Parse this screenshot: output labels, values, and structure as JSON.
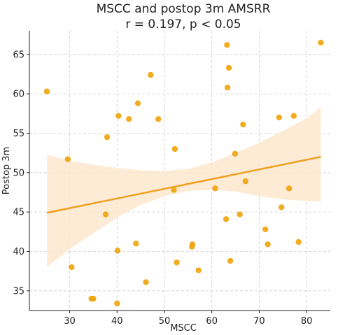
{
  "chart_data": {
    "type": "scatter",
    "title": "MSCC and postop 3m AMSRR",
    "subtitle": "r = 0.197, p < 0.05",
    "xlabel": "MSCC",
    "ylabel": "Postop 3m",
    "xlim": [
      21.5,
      85
    ],
    "ylim": [
      32.5,
      68
    ],
    "xticks": [
      30,
      40,
      50,
      60,
      70,
      80
    ],
    "yticks": [
      35,
      40,
      45,
      50,
      55,
      60,
      65
    ],
    "grid": true,
    "colors": {
      "points": "#f0a30a",
      "line": "#f0a020",
      "band": "#fde8cf",
      "grid": "#cccccc",
      "axis": "#222222"
    },
    "points": [
      {
        "x": 25.2,
        "y": 60.3
      },
      {
        "x": 29.6,
        "y": 51.7
      },
      {
        "x": 30.4,
        "y": 38.0
      },
      {
        "x": 34.6,
        "y": 34.0
      },
      {
        "x": 35.0,
        "y": 34.0
      },
      {
        "x": 37.6,
        "y": 44.7
      },
      {
        "x": 37.9,
        "y": 54.5
      },
      {
        "x": 40.0,
        "y": 33.4
      },
      {
        "x": 40.1,
        "y": 40.1
      },
      {
        "x": 40.3,
        "y": 57.2
      },
      {
        "x": 42.5,
        "y": 56.8
      },
      {
        "x": 44.0,
        "y": 41.0
      },
      {
        "x": 44.4,
        "y": 58.8
      },
      {
        "x": 46.1,
        "y": 36.1
      },
      {
        "x": 47.1,
        "y": 62.4
      },
      {
        "x": 48.7,
        "y": 56.8
      },
      {
        "x": 52.0,
        "y": 47.8
      },
      {
        "x": 52.2,
        "y": 53.0
      },
      {
        "x": 52.6,
        "y": 38.6
      },
      {
        "x": 55.8,
        "y": 40.6
      },
      {
        "x": 55.9,
        "y": 40.9
      },
      {
        "x": 57.2,
        "y": 37.6
      },
      {
        "x": 60.7,
        "y": 48.0
      },
      {
        "x": 63.0,
        "y": 44.1
      },
      {
        "x": 63.2,
        "y": 66.2
      },
      {
        "x": 63.3,
        "y": 60.8
      },
      {
        "x": 63.6,
        "y": 63.3
      },
      {
        "x": 63.9,
        "y": 38.8
      },
      {
        "x": 64.9,
        "y": 52.4
      },
      {
        "x": 65.9,
        "y": 44.7
      },
      {
        "x": 66.6,
        "y": 56.1
      },
      {
        "x": 67.1,
        "y": 48.9
      },
      {
        "x": 71.3,
        "y": 42.8
      },
      {
        "x": 71.8,
        "y": 40.9
      },
      {
        "x": 74.2,
        "y": 57.0
      },
      {
        "x": 74.7,
        "y": 45.6
      },
      {
        "x": 76.3,
        "y": 48.0
      },
      {
        "x": 77.3,
        "y": 57.2
      },
      {
        "x": 78.3,
        "y": 41.2
      },
      {
        "x": 83.0,
        "y": 66.5
      }
    ],
    "regression": {
      "x": [
        25.2,
        83.0
      ],
      "y": [
        44.9,
        52.0
      ]
    },
    "confidence_band": {
      "x": [
        25.2,
        30,
        35,
        40,
        45,
        50,
        55,
        60,
        65,
        70,
        75,
        80,
        83.0
      ],
      "lower": [
        38.0,
        40.3,
        42.3,
        44.3,
        45.9,
        47.0,
        47.7,
        47.8,
        47.6,
        47.0,
        46.6,
        46.4,
        46.3
      ],
      "upper": [
        52.3,
        51.5,
        51.0,
        50.6,
        50.3,
        50.2,
        50.5,
        51.3,
        52.5,
        53.8,
        55.3,
        56.9,
        58.3
      ]
    }
  }
}
